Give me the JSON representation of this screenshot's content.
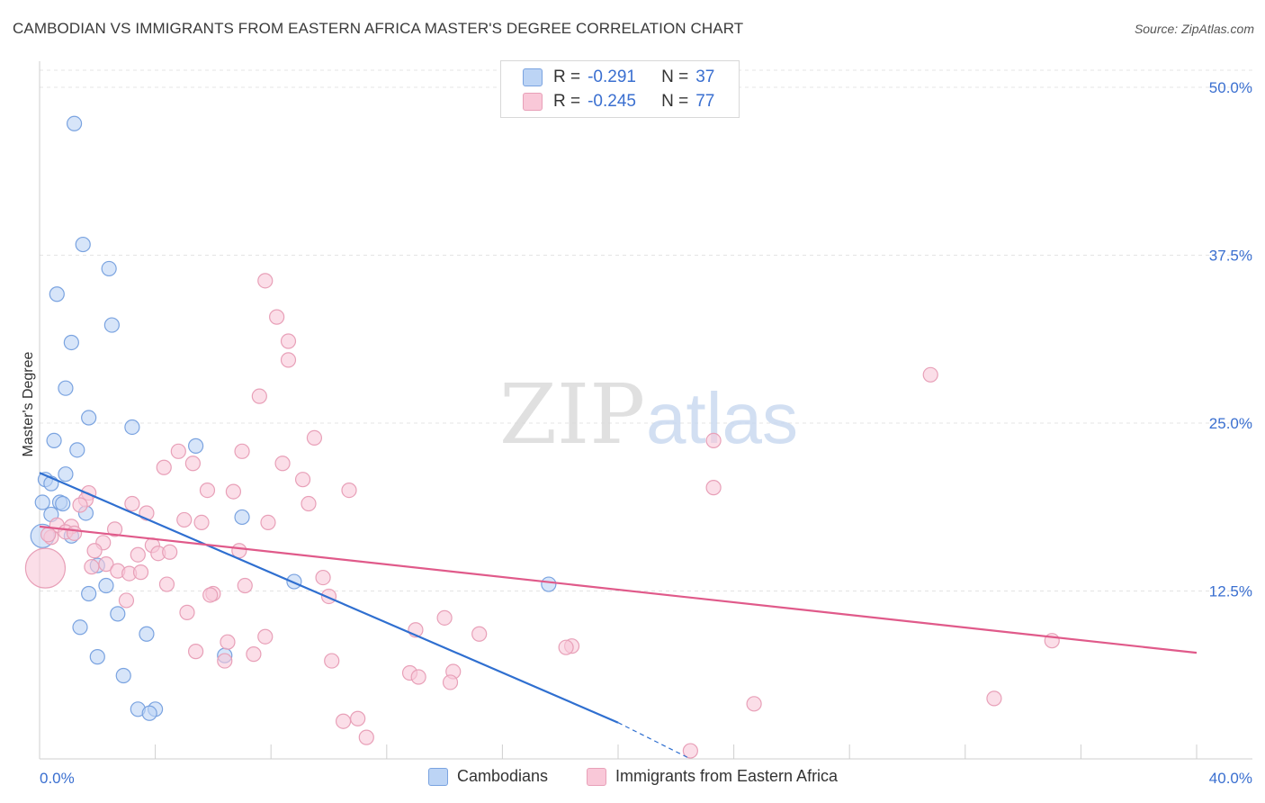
{
  "title": "CAMBODIAN VS IMMIGRANTS FROM EASTERN AFRICA MASTER'S DEGREE CORRELATION CHART",
  "source": "Source: ZipAtlas.com",
  "watermark": {
    "zip": "ZIP",
    "atlas": "atlas"
  },
  "legend": {
    "r_label": "R =",
    "n_label": "N =",
    "rows": [
      {
        "r": "-0.291",
        "n": "37",
        "fill": "#bcd4f5",
        "stroke": "#7aa3e0"
      },
      {
        "r": "-0.245",
        "n": "77",
        "fill": "#f9c8d8",
        "stroke": "#e8a0b8"
      }
    ]
  },
  "bottom_legend": [
    {
      "label": "Cambodians",
      "fill": "#bcd4f5",
      "stroke": "#7aa3e0"
    },
    {
      "label": "Immigrants from Eastern Africa",
      "fill": "#f9c8d8",
      "stroke": "#e8a0b8"
    }
  ],
  "chart_data": {
    "type": "scatter",
    "title": "CAMBODIAN VS IMMIGRANTS FROM EASTERN AFRICA MASTER'S DEGREE CORRELATION CHART",
    "xlabel": "",
    "ylabel": "Master's Degree",
    "xlim": [
      0,
      40
    ],
    "ylim": [
      0,
      50
    ],
    "x_tick_labels": [
      "0.0%",
      "40.0%"
    ],
    "y_ticks": [
      12.5,
      25.0,
      37.5,
      50.0
    ],
    "y_tick_labels": [
      "12.5%",
      "25.0%",
      "37.5%",
      "50.0%"
    ],
    "series": [
      {
        "name": "Cambodians",
        "color": "#7aa3e0",
        "fill": "#bcd4f5",
        "line_color": "#2f6fd0",
        "trend": {
          "x0": 0.0,
          "y0": 21.3,
          "x1": 20.0,
          "y1": 2.7,
          "dash_to_x": 22.5,
          "dash_to_y": 0.0
        },
        "points": [
          [
            1.2,
            47.3
          ],
          [
            1.5,
            38.3
          ],
          [
            2.4,
            36.5
          ],
          [
            0.6,
            34.6
          ],
          [
            2.5,
            32.3
          ],
          [
            1.1,
            31.0
          ],
          [
            0.9,
            27.6
          ],
          [
            1.7,
            25.4
          ],
          [
            3.2,
            24.7
          ],
          [
            0.5,
            23.7
          ],
          [
            1.3,
            23.0
          ],
          [
            5.4,
            23.3
          ],
          [
            0.2,
            20.8
          ],
          [
            0.4,
            20.5
          ],
          [
            0.9,
            21.2
          ],
          [
            0.1,
            19.1
          ],
          [
            0.7,
            19.1
          ],
          [
            0.8,
            19.0
          ],
          [
            0.4,
            18.2
          ],
          [
            1.6,
            18.3
          ],
          [
            7.0,
            18.0
          ],
          [
            0.1,
            16.6
          ],
          [
            1.1,
            16.6
          ],
          [
            2.0,
            14.4
          ],
          [
            2.3,
            12.9
          ],
          [
            8.8,
            13.2
          ],
          [
            17.6,
            13.0
          ],
          [
            1.7,
            12.3
          ],
          [
            2.7,
            10.8
          ],
          [
            1.4,
            9.8
          ],
          [
            3.7,
            9.3
          ],
          [
            6.4,
            7.7
          ],
          [
            2.0,
            7.6
          ],
          [
            2.9,
            6.2
          ],
          [
            3.4,
            3.7
          ],
          [
            4.0,
            3.7
          ],
          [
            3.8,
            3.4
          ]
        ]
      },
      {
        "name": "Immigrants from Eastern Africa",
        "color": "#e8a0b8",
        "fill": "#f9c8d8",
        "line_color": "#e05a8a",
        "trend": {
          "x0": 0.0,
          "y0": 17.3,
          "x1": 40.0,
          "y1": 7.9
        },
        "points": [
          [
            0.2,
            14.2
          ],
          [
            7.8,
            35.6
          ],
          [
            8.2,
            32.9
          ],
          [
            8.6,
            31.1
          ],
          [
            8.6,
            29.7
          ],
          [
            30.8,
            28.6
          ],
          [
            7.6,
            27.0
          ],
          [
            9.5,
            23.9
          ],
          [
            23.3,
            23.7
          ],
          [
            4.8,
            22.9
          ],
          [
            7.0,
            22.9
          ],
          [
            8.4,
            22.0
          ],
          [
            5.3,
            22.0
          ],
          [
            4.3,
            21.7
          ],
          [
            9.1,
            20.8
          ],
          [
            23.3,
            20.2
          ],
          [
            5.8,
            20.0
          ],
          [
            6.7,
            19.9
          ],
          [
            10.7,
            20.0
          ],
          [
            1.7,
            19.8
          ],
          [
            1.6,
            19.3
          ],
          [
            3.2,
            19.0
          ],
          [
            9.3,
            19.0
          ],
          [
            1.4,
            18.9
          ],
          [
            0.6,
            17.4
          ],
          [
            1.1,
            17.3
          ],
          [
            3.7,
            18.3
          ],
          [
            5.0,
            17.8
          ],
          [
            5.6,
            17.6
          ],
          [
            7.9,
            17.6
          ],
          [
            2.6,
            17.1
          ],
          [
            0.9,
            16.9
          ],
          [
            1.2,
            16.8
          ],
          [
            0.4,
            16.5
          ],
          [
            0.3,
            16.7
          ],
          [
            2.2,
            16.1
          ],
          [
            3.9,
            15.9
          ],
          [
            1.9,
            15.5
          ],
          [
            3.4,
            15.2
          ],
          [
            4.1,
            15.3
          ],
          [
            4.5,
            15.4
          ],
          [
            6.9,
            15.5
          ],
          [
            2.3,
            14.5
          ],
          [
            1.8,
            14.3
          ],
          [
            2.7,
            14.0
          ],
          [
            3.1,
            13.8
          ],
          [
            3.5,
            13.9
          ],
          [
            9.8,
            13.5
          ],
          [
            4.4,
            13.0
          ],
          [
            7.1,
            12.9
          ],
          [
            6.0,
            12.3
          ],
          [
            5.9,
            12.2
          ],
          [
            10.0,
            12.1
          ],
          [
            3.0,
            11.8
          ],
          [
            5.1,
            10.9
          ],
          [
            14.0,
            10.5
          ],
          [
            13.0,
            9.6
          ],
          [
            15.2,
            9.3
          ],
          [
            7.8,
            9.1
          ],
          [
            6.5,
            8.7
          ],
          [
            35.0,
            8.8
          ],
          [
            18.4,
            8.4
          ],
          [
            18.2,
            8.3
          ],
          [
            5.4,
            8.0
          ],
          [
            7.4,
            7.8
          ],
          [
            6.4,
            7.3
          ],
          [
            10.1,
            7.3
          ],
          [
            14.3,
            6.5
          ],
          [
            12.8,
            6.4
          ],
          [
            13.1,
            6.1
          ],
          [
            14.2,
            5.7
          ],
          [
            33.0,
            4.5
          ],
          [
            24.7,
            4.1
          ],
          [
            10.5,
            2.8
          ],
          [
            11.3,
            1.6
          ],
          [
            22.5,
            0.6
          ],
          [
            11.0,
            3.0
          ]
        ]
      }
    ]
  }
}
